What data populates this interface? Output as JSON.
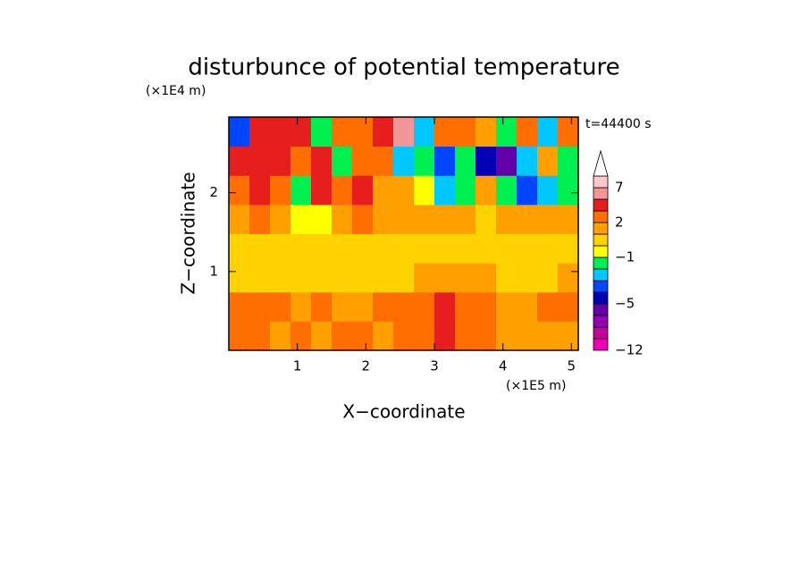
{
  "chart_data": {
    "type": "contour",
    "title": "disturbunce of potential temperature",
    "x_label": "X−coordinate",
    "y_label": "Z−coordinate",
    "x_unit_label": "(×1E5 m)",
    "y_unit_label": "(×1E4 m)",
    "annotation": "t=44400 s",
    "xlim": [
      0,
      5.1
    ],
    "ylim": [
      0,
      2.96
    ],
    "xticks": [
      1,
      2,
      3,
      4,
      5
    ],
    "yticks": [
      1,
      2
    ],
    "x_edges": [
      0,
      0.3,
      0.6,
      0.9,
      1.2,
      1.5,
      1.8,
      2.1,
      2.4,
      2.7,
      3.0,
      3.3,
      3.6,
      3.9,
      4.2,
      4.5,
      4.8,
      5.1
    ],
    "z_edges": [
      0,
      0.37,
      0.74,
      1.11,
      1.48,
      1.85,
      2.22,
      2.59,
      2.96
    ],
    "values": [
      [
        2,
        2,
        1.5,
        2,
        1.5,
        2,
        2,
        1.5,
        2,
        2,
        3,
        2.5,
        2,
        1.5,
        1.5,
        1.5,
        1.5
      ],
      [
        2.5,
        2,
        2.5,
        1.5,
        2,
        1.5,
        1.5,
        2,
        2,
        2.5,
        3,
        2.5,
        2,
        1.5,
        1.5,
        2,
        2
      ],
      [
        0.5,
        0.5,
        0.5,
        0.5,
        0.5,
        0.5,
        0.5,
        0.5,
        0.5,
        1.5,
        1.5,
        1.5,
        1.5,
        0.5,
        0.5,
        0.5,
        1.5
      ],
      [
        0.5,
        0.5,
        0.5,
        0.5,
        0.5,
        0.5,
        0.5,
        0.5,
        0.5,
        0.5,
        0.5,
        0.5,
        0.5,
        0.5,
        0.5,
        0.5,
        0.5
      ],
      [
        1.5,
        2,
        1.5,
        -0.5,
        -0.5,
        1.5,
        2.5,
        1.5,
        1.5,
        1.5,
        1,
        1.5,
        0.5,
        1.5,
        1.5,
        1,
        1
      ],
      [
        2.5,
        3.5,
        2.5,
        -1.5,
        3,
        2,
        3,
        1.5,
        1.5,
        -0.5,
        -3,
        -1.5,
        1.5,
        -2,
        -4,
        -3,
        -2
      ],
      [
        3,
        4,
        3,
        2.5,
        4,
        -2,
        2.5,
        2,
        -3,
        -1.5,
        -4,
        -2,
        -4.5,
        -6,
        -3,
        1,
        -2
      ],
      [
        -4,
        3,
        4,
        3,
        -2,
        2,
        2.5,
        4,
        5,
        -3,
        2,
        2.5,
        1.5,
        -1.5,
        2,
        -3,
        2
      ]
    ],
    "colorbar": {
      "levels": [
        -12,
        -10,
        -8,
        -6,
        -5,
        -4,
        -3,
        -2,
        -1,
        0,
        1,
        2,
        3,
        5,
        7,
        9
      ],
      "colors": [
        "#f000b4",
        "#c8009b",
        "#9600b4",
        "#6400aa",
        "#0000b4",
        "#0046ff",
        "#00c8ff",
        "#00f050",
        "#ffff00",
        "#ffd200",
        "#ffa000",
        "#ff6e00",
        "#e61e1e",
        "#f09696",
        "#ffc8c8"
      ],
      "extend_color": "#ffffff",
      "ticks": [
        {
          "value": -12,
          "label": "−12"
        },
        {
          "value": -5,
          "label": "−5"
        },
        {
          "value": -1,
          "label": "−1"
        },
        2,
        7
      ]
    }
  }
}
